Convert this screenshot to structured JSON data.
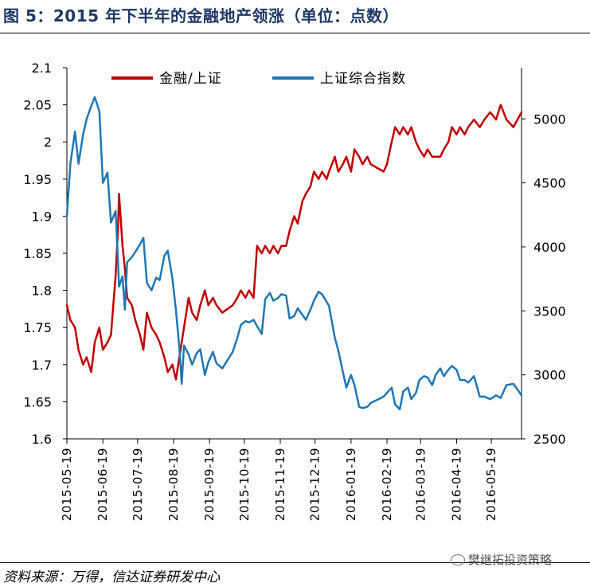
{
  "title": "图 5：2015 年下半年的金融地产领涨（单位：点数）",
  "source": "资料来源：万得，信达证券研发中心",
  "watermark": "樊继拓投资策略",
  "chart_data": {
    "type": "line",
    "x_tick_labels": [
      "2015-05-19",
      "2015-06-19",
      "2015-07-19",
      "2015-08-19",
      "2015-09-19",
      "2015-10-19",
      "2015-11-19",
      "2015-12-19",
      "2016-01-19",
      "2016-02-19",
      "2016-03-19",
      "2016-04-19",
      "2016-05-19"
    ],
    "x_start": "2015-05-19",
    "x_end": "2016-06-14",
    "y_left": {
      "range": [
        1.6,
        2.1
      ],
      "ticks": [
        "1.6",
        "1.65",
        "1.7",
        "1.75",
        "1.8",
        "1.85",
        "1.9",
        "1.95",
        "2",
        "2.05",
        "2.1"
      ]
    },
    "y_right": {
      "range": [
        2500,
        5400
      ],
      "ticks": [
        "2500",
        "3000",
        "3500",
        "4000",
        "4500",
        "5000"
      ]
    },
    "legend_placement": "top",
    "series": [
      {
        "name": "金融/上证",
        "axis": "left",
        "color": "#c00000",
        "points": [
          [
            "2015-05-19",
            1.78
          ],
          [
            "2015-05-22",
            1.76
          ],
          [
            "2015-05-26",
            1.75
          ],
          [
            "2015-05-29",
            1.72
          ],
          [
            "2015-06-02",
            1.7
          ],
          [
            "2015-06-05",
            1.71
          ],
          [
            "2015-06-09",
            1.69
          ],
          [
            "2015-06-12",
            1.73
          ],
          [
            "2015-06-16",
            1.75
          ],
          [
            "2015-06-19",
            1.72
          ],
          [
            "2015-06-23",
            1.73
          ],
          [
            "2015-06-26",
            1.74
          ],
          [
            "2015-06-30",
            1.82
          ],
          [
            "2015-07-02",
            1.88
          ],
          [
            "2015-07-03",
            1.93
          ],
          [
            "2015-07-06",
            1.86
          ],
          [
            "2015-07-08",
            1.83
          ],
          [
            "2015-07-10",
            1.79
          ],
          [
            "2015-07-14",
            1.78
          ],
          [
            "2015-07-17",
            1.76
          ],
          [
            "2015-07-21",
            1.74
          ],
          [
            "2015-07-24",
            1.72
          ],
          [
            "2015-07-27",
            1.77
          ],
          [
            "2015-07-31",
            1.75
          ],
          [
            "2015-08-04",
            1.74
          ],
          [
            "2015-08-07",
            1.73
          ],
          [
            "2015-08-11",
            1.71
          ],
          [
            "2015-08-14",
            1.69
          ],
          [
            "2015-08-18",
            1.7
          ],
          [
            "2015-08-21",
            1.68
          ],
          [
            "2015-08-24",
            1.71
          ],
          [
            "2015-08-26",
            1.73
          ],
          [
            "2015-08-28",
            1.75
          ],
          [
            "2015-09-01",
            1.79
          ],
          [
            "2015-09-04",
            1.77
          ],
          [
            "2015-09-08",
            1.76
          ],
          [
            "2015-09-11",
            1.78
          ],
          [
            "2015-09-15",
            1.8
          ],
          [
            "2015-09-18",
            1.78
          ],
          [
            "2015-09-22",
            1.79
          ],
          [
            "2015-09-25",
            1.78
          ],
          [
            "2015-09-30",
            1.77
          ],
          [
            "2015-10-09",
            1.78
          ],
          [
            "2015-10-13",
            1.79
          ],
          [
            "2015-10-16",
            1.8
          ],
          [
            "2015-10-20",
            1.79
          ],
          [
            "2015-10-23",
            1.8
          ],
          [
            "2015-10-27",
            1.79
          ],
          [
            "2015-10-30",
            1.86
          ],
          [
            "2015-11-03",
            1.85
          ],
          [
            "2015-11-06",
            1.86
          ],
          [
            "2015-11-10",
            1.85
          ],
          [
            "2015-11-13",
            1.86
          ],
          [
            "2015-11-17",
            1.85
          ],
          [
            "2015-11-20",
            1.86
          ],
          [
            "2015-11-24",
            1.86
          ],
          [
            "2015-11-27",
            1.88
          ],
          [
            "2015-12-01",
            1.9
          ],
          [
            "2015-12-04",
            1.89
          ],
          [
            "2015-12-08",
            1.92
          ],
          [
            "2015-12-11",
            1.93
          ],
          [
            "2015-12-15",
            1.94
          ],
          [
            "2015-12-18",
            1.96
          ],
          [
            "2015-12-22",
            1.95
          ],
          [
            "2015-12-25",
            1.96
          ],
          [
            "2015-12-29",
            1.95
          ],
          [
            "2015-12-31",
            1.96
          ],
          [
            "2016-01-05",
            1.98
          ],
          [
            "2016-01-08",
            1.96
          ],
          [
            "2016-01-12",
            1.97
          ],
          [
            "2016-01-15",
            1.98
          ],
          [
            "2016-01-19",
            1.96
          ],
          [
            "2016-01-22",
            1.99
          ],
          [
            "2016-01-26",
            1.98
          ],
          [
            "2016-01-29",
            1.97
          ],
          [
            "2016-02-02",
            1.98
          ],
          [
            "2016-02-05",
            1.97
          ],
          [
            "2016-02-16",
            1.96
          ],
          [
            "2016-02-19",
            1.97
          ],
          [
            "2016-02-23",
            2.0
          ],
          [
            "2016-02-26",
            2.02
          ],
          [
            "2016-03-01",
            2.01
          ],
          [
            "2016-03-04",
            2.02
          ],
          [
            "2016-03-08",
            2.01
          ],
          [
            "2016-03-11",
            2.02
          ],
          [
            "2016-03-15",
            2.0
          ],
          [
            "2016-03-18",
            1.99
          ],
          [
            "2016-03-22",
            1.98
          ],
          [
            "2016-03-25",
            1.99
          ],
          [
            "2016-03-29",
            1.98
          ],
          [
            "2016-04-01",
            1.98
          ],
          [
            "2016-04-05",
            1.98
          ],
          [
            "2016-04-08",
            1.99
          ],
          [
            "2016-04-12",
            2.0
          ],
          [
            "2016-04-15",
            2.02
          ],
          [
            "2016-04-19",
            2.01
          ],
          [
            "2016-04-22",
            2.02
          ],
          [
            "2016-04-26",
            2.01
          ],
          [
            "2016-04-29",
            2.02
          ],
          [
            "2016-05-04",
            2.03
          ],
          [
            "2016-05-09",
            2.02
          ],
          [
            "2016-05-13",
            2.03
          ],
          [
            "2016-05-18",
            2.04
          ],
          [
            "2016-05-23",
            2.03
          ],
          [
            "2016-05-27",
            2.05
          ],
          [
            "2016-06-01",
            2.03
          ],
          [
            "2016-06-07",
            2.02
          ],
          [
            "2016-06-14",
            2.04
          ]
        ]
      },
      {
        "name": "上证综合指数",
        "axis": "right",
        "color": "#1f77b4",
        "points": [
          [
            "2015-05-19",
            4240
          ],
          [
            "2015-05-22",
            4650
          ],
          [
            "2015-05-26",
            4900
          ],
          [
            "2015-05-29",
            4650
          ],
          [
            "2015-06-02",
            4880
          ],
          [
            "2015-06-05",
            5000
          ],
          [
            "2015-06-09",
            5100
          ],
          [
            "2015-06-12",
            5170
          ],
          [
            "2015-06-16",
            5060
          ],
          [
            "2015-06-19",
            4500
          ],
          [
            "2015-06-23",
            4580
          ],
          [
            "2015-06-26",
            4190
          ],
          [
            "2015-06-30",
            4280
          ],
          [
            "2015-07-02",
            3900
          ],
          [
            "2015-07-03",
            3690
          ],
          [
            "2015-07-06",
            3770
          ],
          [
            "2015-07-08",
            3510
          ],
          [
            "2015-07-10",
            3880
          ],
          [
            "2015-07-14",
            3920
          ],
          [
            "2015-07-17",
            3960
          ],
          [
            "2015-07-21",
            4020
          ],
          [
            "2015-07-24",
            4070
          ],
          [
            "2015-07-27",
            3720
          ],
          [
            "2015-07-31",
            3660
          ],
          [
            "2015-08-04",
            3760
          ],
          [
            "2015-08-07",
            3740
          ],
          [
            "2015-08-11",
            3930
          ],
          [
            "2015-08-14",
            3970
          ],
          [
            "2015-08-18",
            3750
          ],
          [
            "2015-08-21",
            3510
          ],
          [
            "2015-08-24",
            3210
          ],
          [
            "2015-08-26",
            2930
          ],
          [
            "2015-08-28",
            3230
          ],
          [
            "2015-09-01",
            3160
          ],
          [
            "2015-09-04",
            3080
          ],
          [
            "2015-09-08",
            3170
          ],
          [
            "2015-09-11",
            3200
          ],
          [
            "2015-09-15",
            3000
          ],
          [
            "2015-09-18",
            3100
          ],
          [
            "2015-09-22",
            3180
          ],
          [
            "2015-09-25",
            3090
          ],
          [
            "2015-09-30",
            3050
          ],
          [
            "2015-10-09",
            3180
          ],
          [
            "2015-10-13",
            3290
          ],
          [
            "2015-10-16",
            3390
          ],
          [
            "2015-10-20",
            3420
          ],
          [
            "2015-10-23",
            3410
          ],
          [
            "2015-10-27",
            3430
          ],
          [
            "2015-10-30",
            3380
          ],
          [
            "2015-11-03",
            3320
          ],
          [
            "2015-11-06",
            3590
          ],
          [
            "2015-11-10",
            3640
          ],
          [
            "2015-11-13",
            3580
          ],
          [
            "2015-11-17",
            3600
          ],
          [
            "2015-11-20",
            3630
          ],
          [
            "2015-11-24",
            3620
          ],
          [
            "2015-11-27",
            3440
          ],
          [
            "2015-12-01",
            3460
          ],
          [
            "2015-12-04",
            3520
          ],
          [
            "2015-12-08",
            3470
          ],
          [
            "2015-12-11",
            3430
          ],
          [
            "2015-12-15",
            3510
          ],
          [
            "2015-12-18",
            3580
          ],
          [
            "2015-12-22",
            3650
          ],
          [
            "2015-12-25",
            3630
          ],
          [
            "2015-12-29",
            3570
          ],
          [
            "2015-12-31",
            3540
          ],
          [
            "2016-01-05",
            3290
          ],
          [
            "2016-01-08",
            3190
          ],
          [
            "2016-01-12",
            3020
          ],
          [
            "2016-01-15",
            2900
          ],
          [
            "2016-01-19",
            3000
          ],
          [
            "2016-01-22",
            2920
          ],
          [
            "2016-01-26",
            2750
          ],
          [
            "2016-01-29",
            2740
          ],
          [
            "2016-02-02",
            2750
          ],
          [
            "2016-02-05",
            2780
          ],
          [
            "2016-02-16",
            2830
          ],
          [
            "2016-02-19",
            2860
          ],
          [
            "2016-02-23",
            2900
          ],
          [
            "2016-02-26",
            2770
          ],
          [
            "2016-03-01",
            2730
          ],
          [
            "2016-03-04",
            2870
          ],
          [
            "2016-03-08",
            2900
          ],
          [
            "2016-03-11",
            2810
          ],
          [
            "2016-03-15",
            2860
          ],
          [
            "2016-03-18",
            2960
          ],
          [
            "2016-03-22",
            2990
          ],
          [
            "2016-03-25",
            2980
          ],
          [
            "2016-03-29",
            2920
          ],
          [
            "2016-04-01",
            3000
          ],
          [
            "2016-04-05",
            3050
          ],
          [
            "2016-04-08",
            2990
          ],
          [
            "2016-04-12",
            3040
          ],
          [
            "2016-04-15",
            3070
          ],
          [
            "2016-04-19",
            3040
          ],
          [
            "2016-04-22",
            2960
          ],
          [
            "2016-04-26",
            2960
          ],
          [
            "2016-04-29",
            2940
          ],
          [
            "2016-05-04",
            2990
          ],
          [
            "2016-05-09",
            2830
          ],
          [
            "2016-05-13",
            2830
          ],
          [
            "2016-05-18",
            2810
          ],
          [
            "2016-05-23",
            2840
          ],
          [
            "2016-05-27",
            2820
          ],
          [
            "2016-06-01",
            2920
          ],
          [
            "2016-06-07",
            2930
          ],
          [
            "2016-06-14",
            2840
          ]
        ]
      }
    ]
  }
}
